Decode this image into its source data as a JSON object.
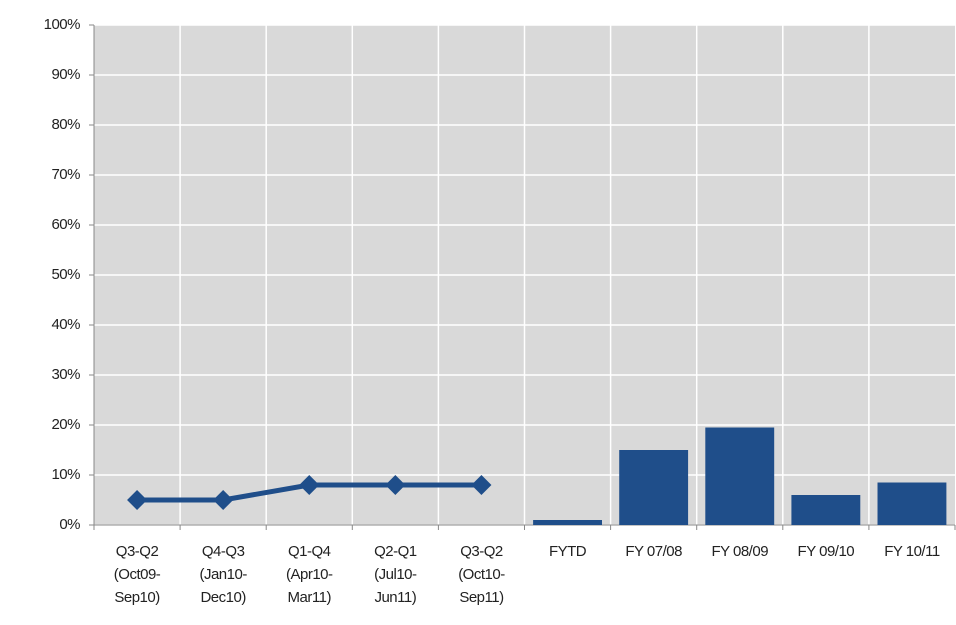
{
  "chart_data": {
    "type": "combo",
    "categories": [
      [
        "Q3-Q2",
        "(Oct09-",
        "Sep10)"
      ],
      [
        "Q4-Q3",
        "(Jan10-",
        "Dec10)"
      ],
      [
        "Q1-Q4",
        "(Apr10-",
        "Mar11)"
      ],
      [
        "Q2-Q1",
        "(Jul10-",
        "Jun11)"
      ],
      [
        "Q3-Q2",
        "(Oct10-",
        "Sep11)"
      ],
      [
        "FYTD"
      ],
      [
        "FY 07/08"
      ],
      [
        "FY 08/09"
      ],
      [
        "FY 09/10"
      ],
      [
        "FY 10/11"
      ]
    ],
    "series": [
      {
        "type": "line",
        "color": "#1f4e8a",
        "values": [
          5,
          5,
          8,
          8,
          8,
          null,
          null,
          null,
          null,
          null
        ]
      },
      {
        "type": "bar",
        "color": "#1f4e8a",
        "values": [
          null,
          null,
          null,
          null,
          null,
          1,
          15,
          19.5,
          6,
          8.5
        ]
      }
    ],
    "ylim": [
      0,
      100
    ],
    "yticks": [
      {
        "value": 0,
        "label": "0%"
      },
      {
        "value": 10,
        "label": "10%"
      },
      {
        "value": 20,
        "label": "20%"
      },
      {
        "value": 30,
        "label": "30%"
      },
      {
        "value": 40,
        "label": "40%"
      },
      {
        "value": 50,
        "label": "50%"
      },
      {
        "value": 60,
        "label": "60%"
      },
      {
        "value": 70,
        "label": "70%"
      },
      {
        "value": 80,
        "label": "80%"
      },
      {
        "value": 90,
        "label": "90%"
      },
      {
        "value": 100,
        "label": "100%"
      }
    ],
    "grid": true
  }
}
